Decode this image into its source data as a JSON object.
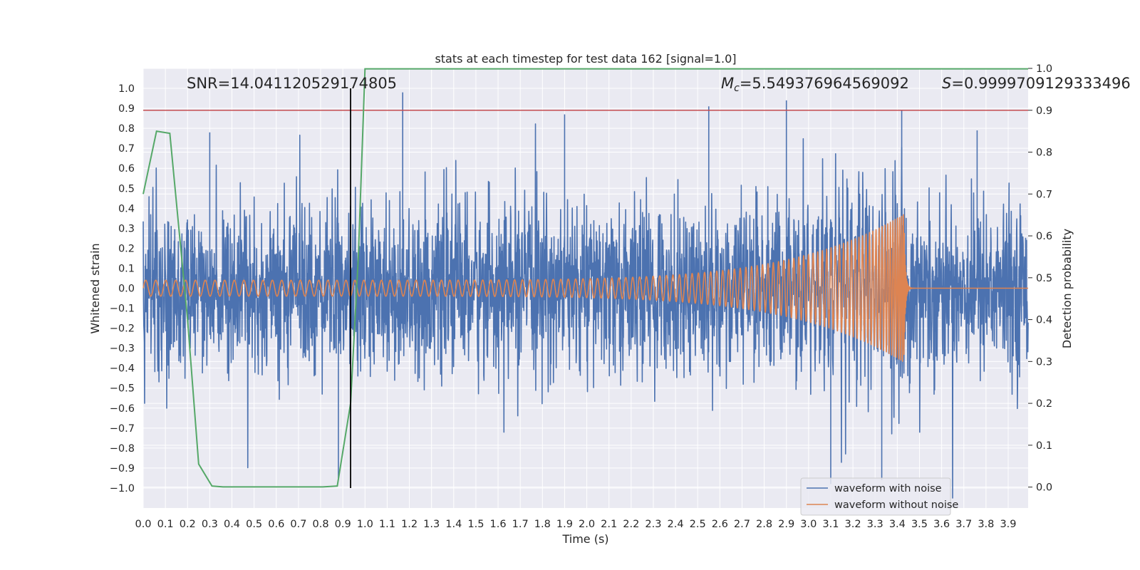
{
  "chart_data": {
    "type": "line",
    "title": "stats at each timestep for test data 162 [signal=1.0]",
    "xlabel": "Time (s)",
    "ylabel_left": "Whitened strain",
    "ylabel_right": "Detection probability",
    "xlim": [
      0.0,
      3.99
    ],
    "ylim_left": [
      -1.1,
      1.1
    ],
    "ylim_right": [
      -0.05,
      1.0
    ],
    "x_ticks": [
      "0.0",
      "0.1",
      "0.2",
      "0.3",
      "0.4",
      "0.5",
      "0.6",
      "0.7",
      "0.8",
      "0.9",
      "1.0",
      "1.1",
      "1.2",
      "1.3",
      "1.4",
      "1.5",
      "1.6",
      "1.7",
      "1.8",
      "1.9",
      "2.0",
      "2.1",
      "2.2",
      "2.3",
      "2.4",
      "2.5",
      "2.6",
      "2.7",
      "2.8",
      "2.9",
      "3.0",
      "3.1",
      "3.2",
      "3.3",
      "3.4",
      "3.5",
      "3.6",
      "3.7",
      "3.8",
      "3.9"
    ],
    "y_ticks_left": [
      "1.0",
      "0.9",
      "0.8",
      "0.7",
      "0.6",
      "0.5",
      "0.4",
      "0.3",
      "0.2",
      "0.1",
      "0.0",
      "−0.1",
      "−0.2",
      "−0.3",
      "−0.4",
      "−0.5",
      "−0.6",
      "−0.7",
      "−0.8",
      "−0.9",
      "−1.0"
    ],
    "y_ticks_right": [
      "1.0",
      "0.9",
      "0.8",
      "0.7",
      "0.6",
      "0.5",
      "0.4",
      "0.3",
      "0.2",
      "0.1",
      "0.0"
    ],
    "annotations": {
      "snr": "SNR=14.041120529174805",
      "mc_symbol": "M",
      "mc_subscript": "c",
      "mc_value": "=5.549376964569092",
      "s_symbol": "S",
      "s_value": "=0.9999709129333496"
    },
    "threshold_value": 0.9,
    "vertical_marker_time": 0.935,
    "legend": {
      "entries": [
        "waveform with noise",
        "waveform without noise"
      ],
      "location": "lower right"
    },
    "series": [
      {
        "name": "waveform with noise",
        "axis": "left",
        "kind": "noise",
        "description": "whitened strain containing noise, amplitude mostly within ±0.6 with peaks near ±1.0",
        "notable_peaks": [
          [
            0.3,
            0.78
          ],
          [
            0.88,
            -0.95
          ],
          [
            1.17,
            0.98
          ],
          [
            1.9,
            0.87
          ],
          [
            2.55,
            0.91
          ],
          [
            2.9,
            0.94
          ],
          [
            3.1,
            -0.98
          ],
          [
            3.33,
            -0.96
          ],
          [
            3.42,
            0.89
          ],
          [
            3.76,
            0.79
          ]
        ]
      },
      {
        "name": "waveform without noise",
        "axis": "left",
        "kind": "chirp",
        "start_time": 0.0,
        "merger_time": 3.43,
        "start_amplitude": 0.04,
        "peak_amplitude": 0.37,
        "ringdown_end_time": 3.46
      },
      {
        "name": "detection probability",
        "axis": "right",
        "kind": "line",
        "x": [
          0.0,
          0.06,
          0.12,
          0.2,
          0.25,
          0.31,
          0.36,
          0.5,
          0.7,
          0.81,
          0.875,
          0.935,
          0.97,
          1.0,
          1.2,
          2.0,
          3.0,
          3.9,
          3.99
        ],
        "y": [
          0.7,
          0.85,
          0.845,
          0.4,
          0.055,
          0.0025,
          0.0005,
          0.0005,
          0.0005,
          0.0005,
          0.0025,
          0.2,
          0.55,
          0.999,
          0.999,
          0.999,
          0.999,
          0.999,
          0.999
        ]
      }
    ],
    "colors": {
      "noise": "#4c72b0",
      "clean": "#dd8452",
      "probability": "#55a868",
      "threshold": "#c44e52",
      "marker": "#000000",
      "plot_background": "#eaeaf2",
      "grid": "#ffffff"
    }
  }
}
